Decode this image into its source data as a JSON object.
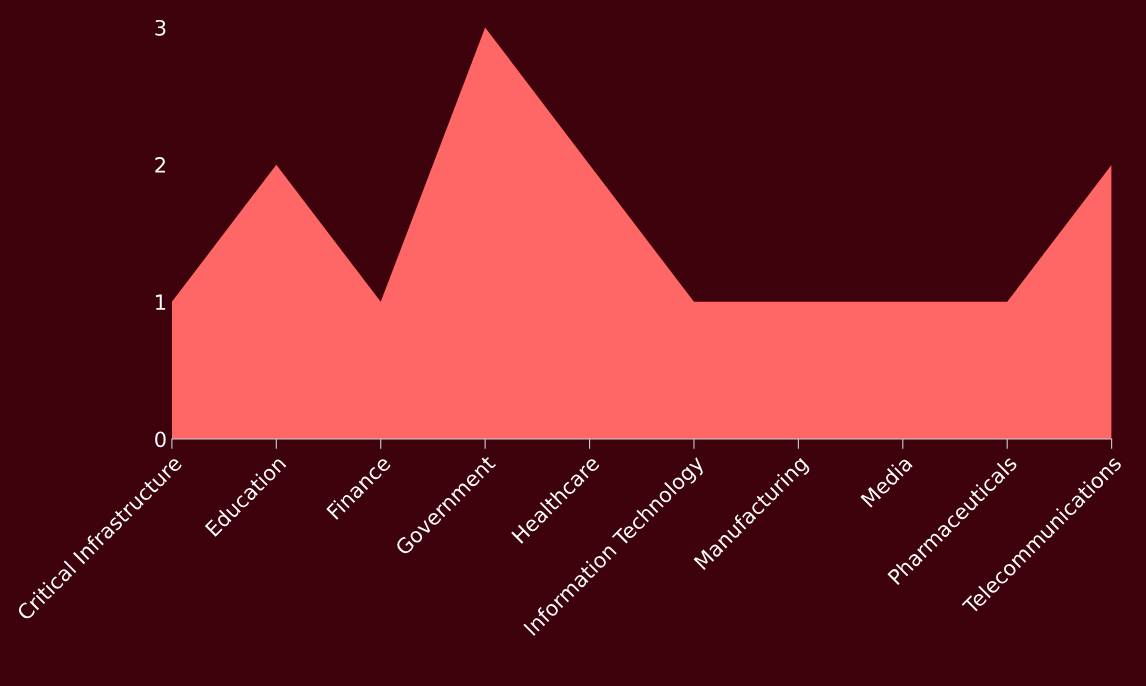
{
  "chart_data": {
    "type": "area",
    "categories": [
      "Critical Infrastructure",
      "Education",
      "Finance",
      "Government",
      "Healthcare",
      "Information Technology",
      "Manufacturing",
      "Media",
      "Pharmaceuticals",
      "Telecommunications"
    ],
    "values": [
      1,
      2,
      1,
      3,
      2,
      1,
      1,
      1,
      1,
      2
    ],
    "color": "#ff6666",
    "ylim": [
      0,
      3
    ],
    "yticks": [
      0,
      1,
      2,
      3
    ],
    "grid": false
  }
}
